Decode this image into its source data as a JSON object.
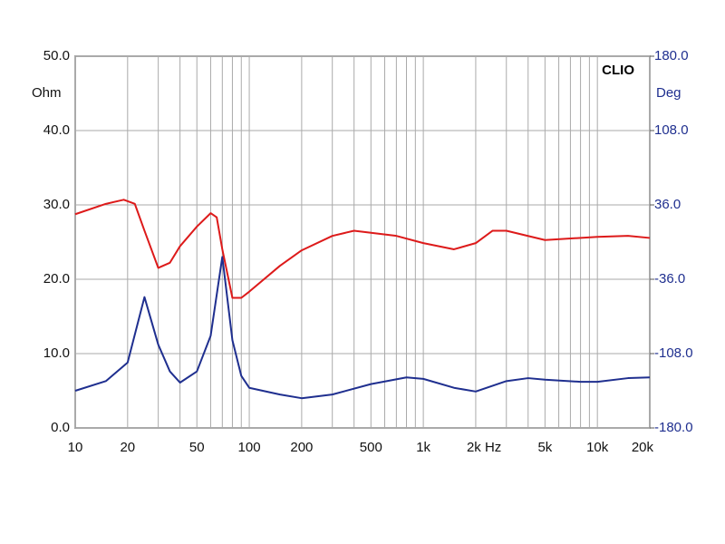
{
  "chart_data": {
    "type": "line",
    "annotation": "CLIO",
    "y_label": "Ohm",
    "y2_label": "Deg",
    "log_x": true,
    "grid": true,
    "xlim": [
      10,
      20000
    ],
    "xticks": [
      {
        "value": 10,
        "label": "10"
      },
      {
        "value": 20,
        "label": "20"
      },
      {
        "value": 50,
        "label": "50"
      },
      {
        "value": 100,
        "label": "100"
      },
      {
        "value": 200,
        "label": "200"
      },
      {
        "value": 500,
        "label": "500"
      },
      {
        "value": 1000,
        "label": "1k"
      },
      {
        "value": 2000,
        "label": "2k Hz"
      },
      {
        "value": 5000,
        "label": "5k"
      },
      {
        "value": 10000,
        "label": "10k"
      },
      {
        "value": 20000,
        "label": "20k"
      }
    ],
    "xgrid": [
      30,
      40,
      60,
      70,
      80,
      90,
      300,
      400,
      600,
      700,
      800,
      900,
      3000,
      4000,
      6000,
      7000,
      8000,
      9000
    ],
    "ylim": [
      0,
      50
    ],
    "yticks": [
      {
        "value": 0,
        "label": "0.0"
      },
      {
        "value": 10,
        "label": "10.0"
      },
      {
        "value": 20,
        "label": "20.0"
      },
      {
        "value": 30,
        "label": "30.0"
      },
      {
        "value": 40,
        "label": "40.0"
      },
      {
        "value": 50,
        "label": "50.0"
      }
    ],
    "y2lim": [
      -180,
      180
    ],
    "y2ticks": [
      {
        "value": -180,
        "label": "-180.0"
      },
      {
        "value": -108,
        "label": "-108.0"
      },
      {
        "value": -36,
        "label": "-36.0"
      },
      {
        "value": 36,
        "label": "36.0"
      },
      {
        "value": 108,
        "label": "108.0"
      },
      {
        "value": 180,
        "label": "180.0"
      }
    ],
    "series": [
      {
        "color": "#1f2f8f",
        "x": [
          10,
          15,
          20,
          25,
          30,
          35,
          40,
          50,
          60,
          70,
          80,
          90,
          100,
          150,
          200,
          300,
          500,
          800,
          1000,
          1500,
          2000,
          3000,
          4000,
          5000,
          8000,
          10000,
          15000,
          20000
        ],
        "values": [
          5.0,
          6.3,
          8.8,
          17.6,
          11.2,
          7.6,
          6.1,
          7.6,
          12.4,
          23.0,
          11.8,
          7.0,
          5.4,
          4.5,
          4.0,
          4.5,
          5.9,
          6.8,
          6.6,
          5.4,
          4.9,
          6.3,
          6.7,
          6.5,
          6.2,
          6.2,
          6.7,
          6.8
        ]
      },
      {
        "color": "#dd1a1a",
        "axis": "y2",
        "x": [
          10,
          15,
          19,
          22,
          25,
          30,
          35,
          40,
          50,
          60,
          65,
          70,
          80,
          90,
          100,
          150,
          200,
          300,
          400,
          700,
          1000,
          1500,
          2000,
          2500,
          3000,
          5000,
          10000,
          15000,
          20000
        ],
        "values": [
          27,
          37,
          41,
          37,
          11,
          -25,
          -20,
          -4,
          15,
          28,
          24,
          -7,
          -54,
          -54,
          -48,
          -23,
          -8,
          6,
          11,
          6,
          -1,
          -7,
          -1,
          11,
          11,
          2,
          5,
          6,
          4
        ]
      }
    ]
  }
}
